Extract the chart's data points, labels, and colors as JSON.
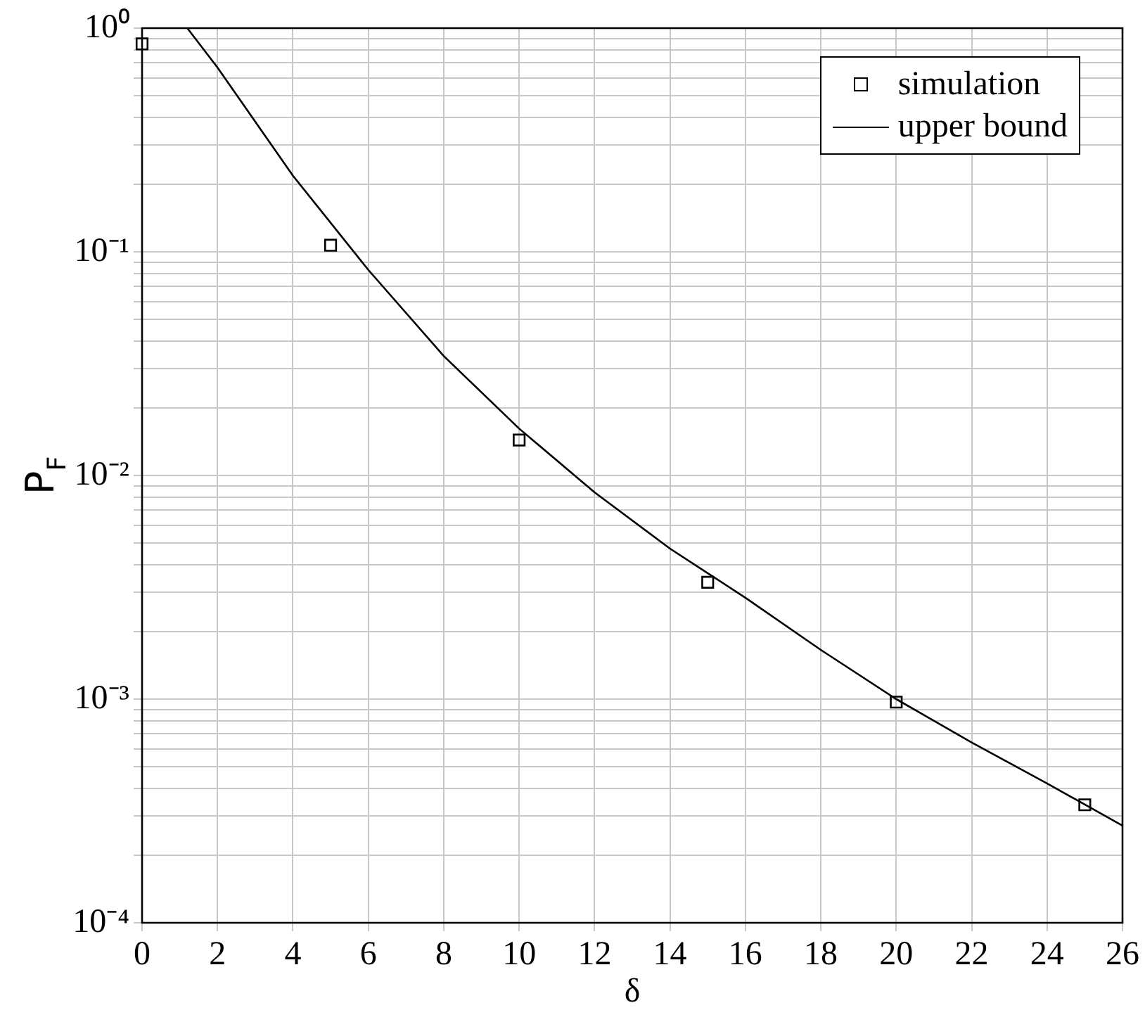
{
  "chart_data": {
    "type": "line",
    "xlabel": "δ",
    "ylabel": "P$_{F}$",
    "log": "y",
    "grid": true,
    "legend": "top right",
    "xlim": [
      0,
      26
    ],
    "xticks": [
      0,
      2,
      4,
      6,
      8,
      10,
      12,
      14,
      16,
      18,
      20,
      22,
      24,
      26
    ],
    "ylim": [
      0.0001,
      1
    ],
    "yticks": [
      {
        "value": 0.0001,
        "label": "10⁻⁴"
      },
      {
        "value": 0.0002,
        "label": null
      },
      {
        "value": 0.0003,
        "label": null
      },
      {
        "value": 0.0004,
        "label": null
      },
      {
        "value": 0.0005,
        "label": null
      },
      {
        "value": 0.0006,
        "label": null
      },
      {
        "value": 0.0007,
        "label": null
      },
      {
        "value": 0.0008,
        "label": null
      },
      {
        "value": 0.0009,
        "label": null
      },
      {
        "value": 0.001,
        "label": "10⁻³"
      },
      {
        "value": 0.002,
        "label": null
      },
      {
        "value": 0.003,
        "label": null
      },
      {
        "value": 0.004,
        "label": null
      },
      {
        "value": 0.005,
        "label": null
      },
      {
        "value": 0.006,
        "label": null
      },
      {
        "value": 0.007,
        "label": null
      },
      {
        "value": 0.008,
        "label": null
      },
      {
        "value": 0.009,
        "label": null
      },
      {
        "value": 0.01,
        "label": "10⁻²"
      },
      {
        "value": 0.02,
        "label": null
      },
      {
        "value": 0.03,
        "label": null
      },
      {
        "value": 0.04,
        "label": null
      },
      {
        "value": 0.05,
        "label": null
      },
      {
        "value": 0.06,
        "label": null
      },
      {
        "value": 0.07,
        "label": null
      },
      {
        "value": 0.08,
        "label": null
      },
      {
        "value": 0.09,
        "label": null
      },
      {
        "value": 0.1,
        "label": "10⁻¹"
      },
      {
        "value": 0.2,
        "label": null
      },
      {
        "value": 0.3,
        "label": null
      },
      {
        "value": 0.4,
        "label": null
      },
      {
        "value": 0.5,
        "label": null
      },
      {
        "value": 0.6,
        "label": null
      },
      {
        "value": 0.7,
        "label": null
      },
      {
        "value": 0.8,
        "label": null
      },
      {
        "value": 0.9,
        "label": null
      },
      {
        "value": 1,
        "label": "10⁰"
      }
    ],
    "series": [
      {
        "name": "simulation",
        "type": "scatter",
        "marker": "square",
        "color": "#000000",
        "x": [
          0,
          5,
          10,
          15,
          20,
          25
        ],
        "values": [
          0.85,
          0.107,
          0.0144,
          0.00333,
          0.00097,
          0.000337
        ]
      },
      {
        "name": "upper bound",
        "marker": "none",
        "line_style": "solid",
        "color": "#000000",
        "x": [
          1.2,
          2,
          4,
          6,
          8,
          10,
          12,
          14,
          16,
          18,
          20,
          22,
          24,
          26
        ],
        "values": [
          1,
          0.667,
          0.219,
          0.083,
          0.0342,
          0.0162,
          0.0084,
          0.00471,
          0.00284,
          0.00166,
          0.001,
          0.00064,
          0.00042,
          0.000272
        ]
      }
    ]
  }
}
